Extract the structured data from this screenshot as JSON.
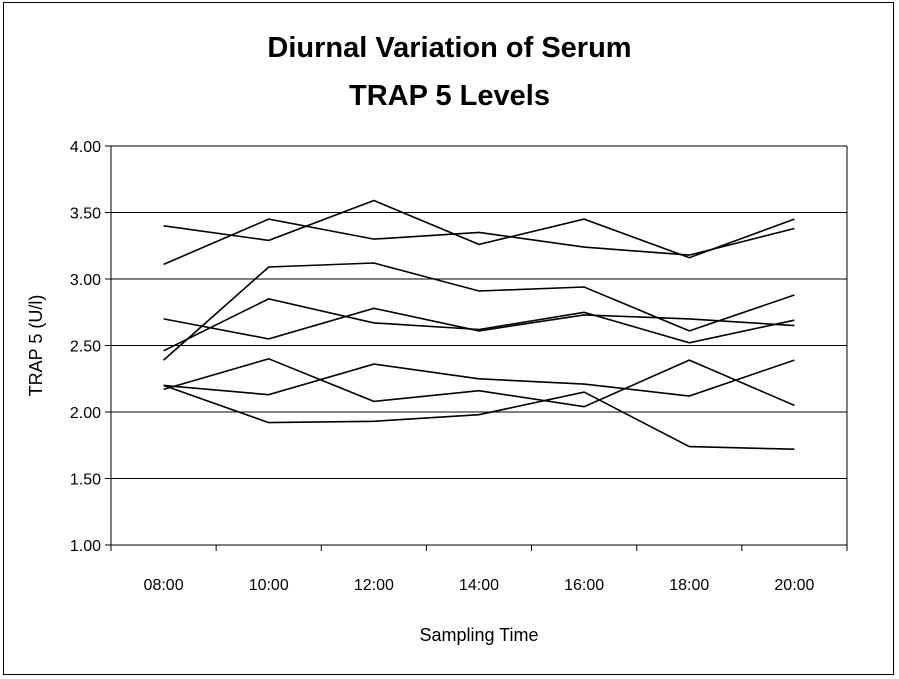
{
  "chart_data": {
    "type": "line",
    "title_lines": [
      "Diurnal Variation of Serum",
      "TRAP 5 Levels"
    ],
    "xlabel": "Sampling Time",
    "ylabel": "TRAP 5 (U/l)",
    "categories": [
      "08:00",
      "10:00",
      "12:00",
      "14:00",
      "16:00",
      "18:00",
      "20:00"
    ],
    "y_ticks": [
      "1.00",
      "1.50",
      "2.00",
      "2.50",
      "3.00",
      "3.50",
      "4.00"
    ],
    "ylim": [
      1.0,
      4.0
    ],
    "grid": "horizontal",
    "legend": "none",
    "line_color": "#000000",
    "series": [
      {
        "values": [
          3.4,
          3.29,
          3.59,
          3.26,
          3.45,
          3.16,
          3.45
        ]
      },
      {
        "values": [
          3.11,
          3.45,
          3.3,
          3.35,
          3.24,
          3.18,
          3.38
        ]
      },
      {
        "values": [
          2.39,
          3.09,
          3.12,
          2.91,
          2.94,
          2.61,
          2.88
        ]
      },
      {
        "values": [
          2.7,
          2.55,
          2.78,
          2.61,
          2.73,
          2.7,
          2.65
        ]
      },
      {
        "values": [
          2.46,
          2.85,
          2.67,
          2.62,
          2.75,
          2.52,
          2.69
        ]
      },
      {
        "values": [
          2.2,
          2.13,
          2.36,
          2.25,
          2.21,
          2.12,
          2.39
        ]
      },
      {
        "values": [
          2.17,
          2.4,
          2.08,
          2.16,
          2.04,
          2.39,
          2.05
        ]
      },
      {
        "values": [
          2.2,
          1.92,
          1.93,
          1.98,
          2.15,
          1.74,
          1.72
        ]
      }
    ]
  }
}
